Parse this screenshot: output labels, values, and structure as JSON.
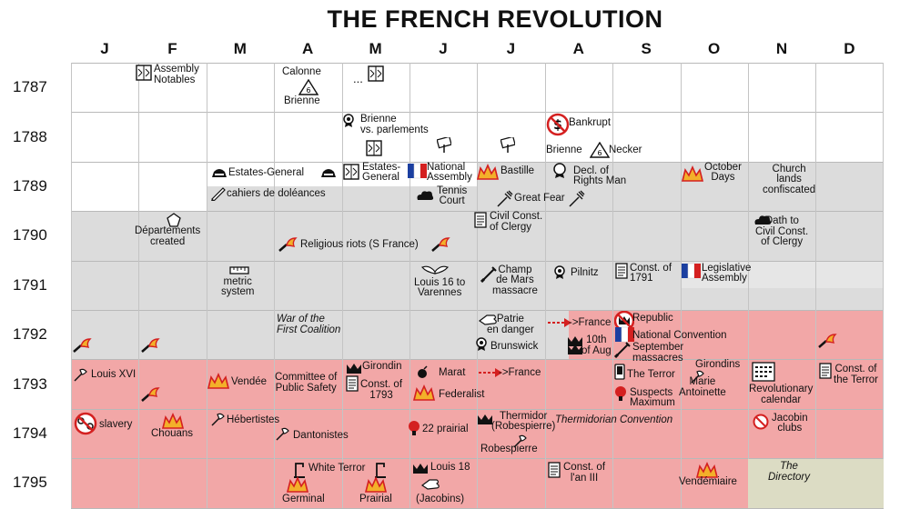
{
  "title": "THE FRENCH REVOLUTION",
  "months": [
    "J",
    "F",
    "M",
    "A",
    "M",
    "J",
    "J",
    "A",
    "S",
    "O",
    "N",
    "D"
  ],
  "years": [
    "1787",
    "1788",
    "1789",
    "1790",
    "1791",
    "1792",
    "1793",
    "1794",
    "1795"
  ],
  "colors": {
    "white": "#ffffff",
    "gray": "#dcdcdc",
    "pink": "#f2a7a7",
    "directory": "#dcdcc4",
    "red": "#d42020",
    "blue": "#1b3fa0",
    "fire": "#f3b02a"
  },
  "events": {
    "assembly_notables": "Assembly\nNotables",
    "calonne": "Calonne",
    "brienne_1787": "Brienne",
    "dots": "...",
    "brienne_parlements": "Brienne\nvs. parlements",
    "bankrupt": "Bankrupt",
    "brienne_necker_a": "Brienne",
    "necker": "Necker",
    "estates_general_may": "Estates-General",
    "estates_general_may2": "Estates-\nGeneral",
    "national_assembly": "National\nAssembly",
    "bastille": "Bastille",
    "decl_rights": "Decl. of\nRights Man",
    "october_days": "October\nDays",
    "church_lands": "Church\nlands\nconfiscated",
    "cahiers": "cahiers de doléances",
    "tennis_court": "Tennis\nCourt",
    "great_fear": "Great Fear",
    "departements": "Départements\ncreated",
    "civil_const_1790": "Civil Const.\nof Clergy",
    "oath": "Oath to\nCivil Const.\nof Clergy",
    "religious_riots": "Religious riots (S France)",
    "metric": "metric\nsystem",
    "varennes": "Louis 16 to\nVarennes",
    "champ_de_mars": "Champ\nde Mars\nmassacre",
    "pilnitz": "Pilnitz",
    "const_1791": "Const. of\n1791",
    "legislative": "Legislative\nAssembly",
    "war_first_coalition": "War of the\nFirst Coalition",
    "patrie": "Patrie\nen danger",
    "arrow_france_1792": "->France",
    "republic": "Republic",
    "national_convention": "National Convention",
    "september": "September\nmassacres",
    "brunswick": "Brunswick",
    "tenth_aug": "10th\nof Aug",
    "louis_xvi": "Louis XVI",
    "vendee": "Vendée",
    "cps": "Committee of\nPublic Safety",
    "girondin": "Girondin",
    "const_1793": "Const. of\n1793",
    "marat": "Marat",
    "federalist": "Federalist",
    "arrow_france_1793": "->France",
    "terror": "The Terror",
    "suspects": "Suspects",
    "maximum": "Maximum",
    "girondins": "Girondins",
    "marie": "Marie\nAntoinette",
    "calendar": "Revolutionary\ncalendar",
    "const_terror": "Const. of\nthe Terror",
    "slavery": "slavery",
    "chouans": "Chouans",
    "hebertistes": "Hébertistes",
    "dantonistes": "Dantonistes",
    "prairial_22": "22 prairial",
    "thermidor": "Thermidor\n(Robespierre)",
    "robespierre": "Robespierre",
    "thermidorian": "Thermidorian Convention",
    "jacobin_clubs": "Jacobin\nclubs",
    "white_terror": "White Terror",
    "louis_18": "Louis 18",
    "germinal": "Germinal",
    "prairial": "Prairial",
    "jacobins": "(Jacobins)",
    "const_an_iii": "Const. of\nl'an III",
    "vendemiaire": "Vendémiaire",
    "directory": "The\nDirectory"
  }
}
